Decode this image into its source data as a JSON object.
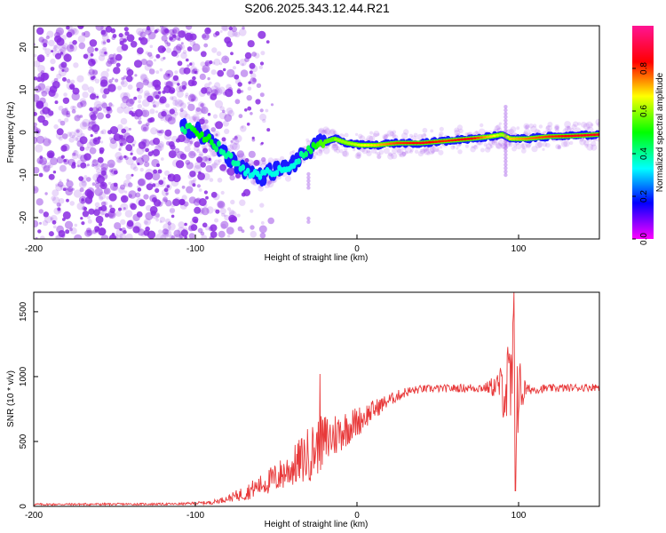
{
  "title": "S206.2025.343.12.44.R21",
  "colors": {
    "snr_line": "#e8393a",
    "spectral_dots": "#8a2be2",
    "track_core": "#e8393a",
    "track_mid": "#19e07a",
    "track_edge": "#1a1aff",
    "frame": "#000000"
  },
  "chart_data": [
    {
      "type": "heatmap",
      "name": "spectrogram",
      "title": "S206.2025.343.12.44.R21",
      "xlabel": "Height of straight line (km)",
      "ylabel": "Frequency (Hz)",
      "xlim": [
        -200,
        150
      ],
      "ylim": [
        -25,
        25
      ],
      "x_ticks": [
        -200,
        -100,
        0,
        100
      ],
      "y_ticks": [
        -20,
        -10,
        0,
        10,
        20
      ],
      "colorbar": {
        "label": "Normalized spectral amplitude",
        "range": [
          0,
          1
        ],
        "ticks": [
          0.0,
          0.2,
          0.4,
          0.6,
          0.8
        ],
        "colormap": "hsv"
      },
      "noise_region_x": [
        -200,
        -85
      ],
      "track_points": [
        {
          "x": -108,
          "freq": 1.0,
          "amp": 0.4
        },
        {
          "x": -100,
          "freq": 0.5,
          "amp": 0.5
        },
        {
          "x": -92,
          "freq": -1.5,
          "amp": 0.5
        },
        {
          "x": -84,
          "freq": -4.0,
          "amp": 0.4
        },
        {
          "x": -76,
          "freq": -7.0,
          "amp": 0.4
        },
        {
          "x": -68,
          "freq": -9.0,
          "amp": 0.35
        },
        {
          "x": -60,
          "freq": -10.5,
          "amp": 0.35
        },
        {
          "x": -52,
          "freq": -9.0,
          "amp": 0.35
        },
        {
          "x": -45,
          "freq": -8.5,
          "amp": 0.35
        },
        {
          "x": -38,
          "freq": -7.0,
          "amp": 0.35
        },
        {
          "x": -30,
          "freq": -4.5,
          "amp": 0.45
        },
        {
          "x": -22,
          "freq": -2.5,
          "amp": 0.55
        },
        {
          "x": -14,
          "freq": -1.5,
          "amp": 0.6
        },
        {
          "x": -6,
          "freq": -2.5,
          "amp": 0.6
        },
        {
          "x": 2,
          "freq": -3.0,
          "amp": 0.65
        },
        {
          "x": 12,
          "freq": -3.0,
          "amp": 0.7
        },
        {
          "x": 25,
          "freq": -2.5,
          "amp": 0.8
        },
        {
          "x": 40,
          "freq": -2.5,
          "amp": 0.85
        },
        {
          "x": 55,
          "freq": -2.0,
          "amp": 0.8
        },
        {
          "x": 70,
          "freq": -1.5,
          "amp": 0.85
        },
        {
          "x": 82,
          "freq": -1.0,
          "amp": 0.7
        },
        {
          "x": 90,
          "freq": -0.5,
          "amp": 0.6
        },
        {
          "x": 95,
          "freq": -1.5,
          "amp": 0.7
        },
        {
          "x": 105,
          "freq": -1.5,
          "amp": 0.75
        },
        {
          "x": 118,
          "freq": -1.0,
          "amp": 0.8
        },
        {
          "x": 135,
          "freq": -0.8,
          "amp": 0.85
        },
        {
          "x": 150,
          "freq": -0.5,
          "amp": 0.85
        }
      ]
    },
    {
      "type": "line",
      "name": "snr",
      "xlabel": "Height of straight line (km)",
      "ylabel": "SNR (10 * v/v)",
      "xlim": [
        -200,
        150
      ],
      "ylim": [
        0,
        1650
      ],
      "x_ticks": [
        -200,
        -100,
        0,
        100
      ],
      "y_ticks": [
        0,
        500,
        1000,
        1500
      ],
      "envelope": [
        {
          "x": -200,
          "mean": 15,
          "spread": 8
        },
        {
          "x": -110,
          "mean": 18,
          "spread": 8
        },
        {
          "x": -90,
          "mean": 30,
          "spread": 15
        },
        {
          "x": -80,
          "mean": 60,
          "spread": 25
        },
        {
          "x": -70,
          "mean": 100,
          "spread": 60
        },
        {
          "x": -60,
          "mean": 160,
          "spread": 80
        },
        {
          "x": -50,
          "mean": 220,
          "spread": 120
        },
        {
          "x": -40,
          "mean": 300,
          "spread": 150
        },
        {
          "x": -30,
          "mean": 400,
          "spread": 220
        },
        {
          "x": -20,
          "mean": 500,
          "spread": 220
        },
        {
          "x": -10,
          "mean": 580,
          "spread": 160
        },
        {
          "x": 0,
          "mean": 650,
          "spread": 120
        },
        {
          "x": 10,
          "mean": 740,
          "spread": 80
        },
        {
          "x": 20,
          "mean": 820,
          "spread": 50
        },
        {
          "x": 30,
          "mean": 880,
          "spread": 40
        },
        {
          "x": 40,
          "mean": 905,
          "spread": 30
        },
        {
          "x": 60,
          "mean": 910,
          "spread": 30
        },
        {
          "x": 80,
          "mean": 915,
          "spread": 40
        },
        {
          "x": 88,
          "mean": 930,
          "spread": 120
        },
        {
          "x": 94,
          "mean": 900,
          "spread": 420
        },
        {
          "x": 97,
          "mean": 880,
          "spread": 700
        },
        {
          "x": 100,
          "mean": 880,
          "spread": 300
        },
        {
          "x": 105,
          "mean": 900,
          "spread": 40
        },
        {
          "x": 120,
          "mean": 910,
          "spread": 30
        },
        {
          "x": 150,
          "mean": 920,
          "spread": 30
        }
      ],
      "peaks": [
        {
          "x": -23,
          "y": 1020
        },
        {
          "x": 97,
          "y": 1650
        },
        {
          "x": 98,
          "y": 120
        }
      ]
    }
  ]
}
